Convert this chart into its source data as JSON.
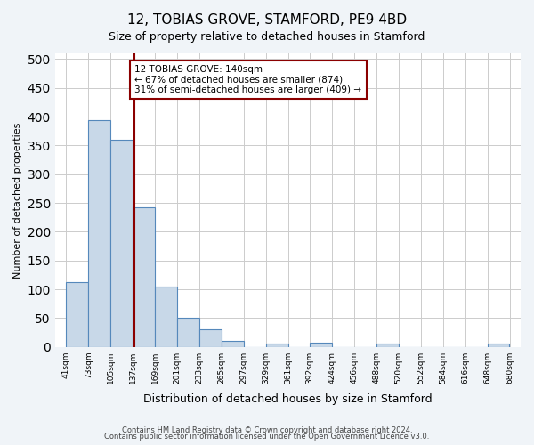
{
  "title": "12, TOBIAS GROVE, STAMFORD, PE9 4BD",
  "subtitle": "Size of property relative to detached houses in Stamford",
  "xlabel": "Distribution of detached houses by size in Stamford",
  "ylabel": "Number of detached properties",
  "bins": [
    41,
    73,
    105,
    137,
    169,
    201,
    233,
    265,
    297,
    329,
    361,
    392,
    424,
    456,
    488,
    520,
    552,
    584,
    616,
    648,
    680
  ],
  "counts": [
    112,
    394,
    360,
    243,
    105,
    50,
    30,
    10,
    0,
    6,
    0,
    7,
    0,
    0,
    5,
    0,
    0,
    0,
    0,
    5
  ],
  "bar_color": "#c8d8e8",
  "bar_edge_color": "#5588bb",
  "property_line_x": 140,
  "property_line_color": "#8b0000",
  "annotation_text_line1": "12 TOBIAS GROVE: 140sqm",
  "annotation_text_line2": "← 67% of detached houses are smaller (874)",
  "annotation_text_line3": "31% of semi-detached houses are larger (409) →",
  "ylim": [
    0,
    510
  ],
  "yticks": [
    0,
    50,
    100,
    150,
    200,
    250,
    300,
    350,
    400,
    450,
    500
  ],
  "bg_color": "#f0f4f8",
  "plot_bg_color": "#ffffff",
  "footer_line1": "Contains HM Land Registry data © Crown copyright and database right 2024.",
  "footer_line2": "Contains public sector information licensed under the Open Government Licence v3.0.",
  "tick_labels": [
    "41sqm",
    "73sqm",
    "105sqm",
    "137sqm",
    "169sqm",
    "201sqm",
    "233sqm",
    "265sqm",
    "297sqm",
    "329sqm",
    "361sqm",
    "392sqm",
    "424sqm",
    "456sqm",
    "488sqm",
    "520sqm",
    "552sqm",
    "584sqm",
    "616sqm",
    "648sqm",
    "680sqm"
  ]
}
